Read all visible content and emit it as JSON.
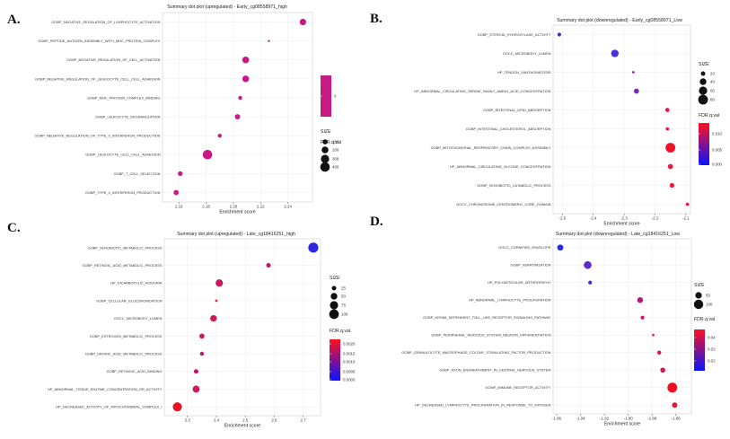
{
  "chart_data": [
    {
      "panel": "A.",
      "type": "scatter",
      "title": "Summary dot plot (upregulated) - Early_cg08558971_high",
      "xlabel": "Enrichment score",
      "xlim": [
        2.148,
        2.258
      ],
      "xticks": [
        2.16,
        2.18,
        2.2,
        2.22,
        2.24
      ],
      "xticklabels": [
        "2.16",
        "2.18",
        "2.20",
        "2.22",
        "2.24"
      ],
      "categories": [
        "GOBP_NEGATIVE_REGULATION_OF_LYMPHOCYTE_ACTIVATION",
        "GOBP_PEPTIDE_ANTIGEN_ASSEMBLY_WITH_MHC_PROTEIN_COMPLEX",
        "GOBP_NEGATIVE_REGULATION_OF_CELL_ACTIVATION",
        "GOBP_NEGATIVE_REGULATION_OF_LEUKOCYTE_CELL_CELL_ADHESION",
        "GOBP_MHC_PROTEIN_COMPLEX_BINDING",
        "GOBP_LEUKOCYTE_DEGRANULATION",
        "GOBP_NEGATIVE_REGULATION_OF_TYPE_II_INTERFERON_PRODUCTION",
        "GOBP_LEUKOCYTE_CELL_CELL_ADHESION",
        "GOBP_T_CELL_SELECTION",
        "GOBP_TYPE_II_INTERFERON_PRODUCTION"
      ],
      "points": [
        {
          "x": 2.251,
          "size": 180,
          "color": "#c81a85"
        },
        {
          "x": 2.226,
          "size": 15,
          "color": "#c81a85"
        },
        {
          "x": 2.209,
          "size": 200,
          "color": "#c81a85"
        },
        {
          "x": 2.209,
          "size": 190,
          "color": "#c81a85"
        },
        {
          "x": 2.205,
          "size": 60,
          "color": "#c81a85"
        },
        {
          "x": 2.203,
          "size": 120,
          "color": "#c81a85"
        },
        {
          "x": 2.19,
          "size": 60,
          "color": "#c81a85"
        },
        {
          "x": 2.181,
          "size": 400,
          "color": "#c81a85"
        },
        {
          "x": 2.161,
          "size": 90,
          "color": "#c81a85"
        },
        {
          "x": 2.158,
          "size": 110,
          "color": "#c81a85"
        }
      ],
      "size_range": [
        10,
        450
      ],
      "color_legend": {
        "title": "FDR.q.val",
        "type": "solid",
        "colors": [
          "#c81a85"
        ],
        "labels": [
          "0"
        ]
      },
      "size_legend": {
        "title": "SIZE",
        "values": [
          100,
          200,
          300,
          400
        ],
        "labels": [
          "100",
          "200",
          "300",
          "400"
        ]
      }
    },
    {
      "panel": "B.",
      "type": "scatter",
      "title": "Summary dot plot (downregulated) - Early_cg08558971_Low",
      "xlabel": "Enrichment score",
      "xlim": [
        -2.53,
        -2.085
      ],
      "xticks": [
        -2.5,
        -2.4,
        -2.3,
        -2.2,
        -2.1
      ],
      "xticklabels": [
        "-2.5",
        "-2.4",
        "-2.3",
        "-2.2",
        "-2.1"
      ],
      "categories": [
        "GOBP_STEROID_HYDROXYLASE_ACTIVITY",
        "GOCC_MICROBODY_LUMEN",
        "HP_TENDON_XANTHOMATOSIS",
        "HP_ABNORMAL_CIRCULATING_SERINE_FAMILY_AMINO_ACID_CONCENTRATION",
        "GOBP_INTESTINAL_LIPID_ABSORPTION",
        "GOBP_INTESTINAL_CHOLESTEROL_ABSORPTION",
        "GOBP_MITOCHONDRIAL_RESPIRATORY_CHAIN_COMPLEX_ASSEMBLY",
        "HP_ABNORMAL_CIRCULATING_GLYCINE_CONCENTRATION",
        "GOBP_XENOBIOTIC_CATABOLIC_PROCESS",
        "GOCC_CHROMOSOME_CENTROMERIC_CORE_DOMAIN"
      ],
      "points": [
        {
          "x": -2.51,
          "size": 15,
          "color": "#3b2ee0"
        },
        {
          "x": -2.33,
          "size": 50,
          "color": "#4a30d8"
        },
        {
          "x": -2.27,
          "size": 8,
          "color": "#8a2a9e"
        },
        {
          "x": -2.26,
          "size": 25,
          "color": "#7a2aae"
        },
        {
          "x": -2.16,
          "size": 18,
          "color": "#e8183a"
        },
        {
          "x": -2.16,
          "size": 12,
          "color": "#e6183c"
        },
        {
          "x": -2.15,
          "size": 80,
          "color": "#f0102a"
        },
        {
          "x": -2.15,
          "size": 25,
          "color": "#e8183a"
        },
        {
          "x": -2.145,
          "size": 22,
          "color": "#e8183a"
        },
        {
          "x": -2.095,
          "size": 12,
          "color": "#e8183a"
        }
      ],
      "size_range": [
        5,
        85
      ],
      "color_legend": {
        "title": "FDR.q.val",
        "type": "gradient",
        "colors": [
          "#ff1020",
          "#0a14ff"
        ],
        "labels": [
          "0.010",
          "0.005",
          "0.000"
        ]
      },
      "size_legend": {
        "title": "SIZE",
        "values": [
          20,
          40,
          60,
          80
        ],
        "labels": [
          "20",
          "40",
          "60",
          "80"
        ]
      }
    },
    {
      "panel": "C.",
      "type": "scatter",
      "title": "Summary dot plot (upregulated) - Late_cg18416251_high",
      "xlabel": "Enrichment score",
      "xlim": [
        2.22,
        2.76
      ],
      "xticks": [
        2.3,
        2.4,
        2.5,
        2.6,
        2.7
      ],
      "xticklabels": [
        "2.3",
        "2.4",
        "2.5",
        "2.6",
        "2.7"
      ],
      "categories": [
        "GOBP_XENOBIOTIC_METABOLIC_PROCESS",
        "GOBP_RETINOIC_ACID_METABOLIC_PROCESS",
        "HP_DICARBOXYLIC_ACIDURIA",
        "GOBP_CELLULAR_GLUCURONIDATION",
        "GOCC_MICROBODY_LUMEN",
        "GOBP_ESTROGEN_METABOLIC_PROCESS",
        "GOBP_URONIC_ACID_METABOLIC_PROCESS",
        "GOBP_RETINOIC_ACID_BINDING",
        "HP_ABNORMAL_TISSUE_ENZYME_CONCENTRATION_OR_ACTIVITY",
        "HP_DECREASED_ACTIVITY_OF_MITOCHONDRIAL_COMPLEX_I"
      ],
      "points": [
        {
          "x": 2.735,
          "size": 110,
          "color": "#3028e0"
        },
        {
          "x": 2.58,
          "size": 25,
          "color": "#c0186a"
        },
        {
          "x": 2.41,
          "size": 60,
          "color": "#c8185e"
        },
        {
          "x": 2.4,
          "size": 8,
          "color": "#e8182e"
        },
        {
          "x": 2.39,
          "size": 50,
          "color": "#d0185a"
        },
        {
          "x": 2.35,
          "size": 30,
          "color": "#c8185e"
        },
        {
          "x": 2.35,
          "size": 20,
          "color": "#c0186a"
        },
        {
          "x": 2.33,
          "size": 25,
          "color": "#c0186a"
        },
        {
          "x": 2.33,
          "size": 55,
          "color": "#c8185e"
        },
        {
          "x": 2.265,
          "size": 90,
          "color": "#e61228"
        }
      ],
      "size_range": [
        5,
        110
      ],
      "color_legend": {
        "title": "FDR.q.val",
        "type": "gradient",
        "colors": [
          "#ff1020",
          "#0a14ff"
        ],
        "labels": [
          "0.0020",
          "0.0015",
          "0.0010",
          "0.0005",
          "0.0000"
        ]
      },
      "size_legend": {
        "title": "SIZE",
        "values": [
          25,
          50,
          75,
          100
        ],
        "labels": [
          "25",
          "50",
          "75",
          "100"
        ]
      }
    },
    {
      "panel": "D.",
      "type": "scatter",
      "title": "Summary dot plot (downregulated) - Late_cg18416251_Low",
      "xlabel": "Enrichment score",
      "xlim": [
        -1.963,
        -1.847
      ],
      "xticks": [
        -1.96,
        -1.94,
        -1.92,
        -1.9,
        -1.88,
        -1.86
      ],
      "xticklabels": [
        "-1.96",
        "-1.94",
        "-1.92",
        "-1.90",
        "-1.88",
        "-1.86"
      ],
      "categories": [
        "GOCC_CORNIFIED_ENVELOPE",
        "GOBP_KERATINIZATION",
        "HP_POLYARTICULAR_ARTHROPATHY",
        "HP_ABNORMAL_LYMPHOCYTE_PROLIFERATION",
        "GOBP_MYD88_DEPENDENT_TOLL_LIKE_RECEPTOR_SIGNALING_PATHWAY",
        "GOBP_PERIPHERAL_NERVOUS_SYSTEM_NEURON_DIFFERENTIATION",
        "GOBP_GRANULOCYTE_MACROPHAGE_COLONY_STIMULATING_FACTOR_PRODUCTION",
        "GOBP_AXON_ENSHEATHMENT_IN_CENTRAL_NERVOUS_SYSTEM",
        "GOMF_IMMUNE_RECEPTOR_ACTIVITY",
        "HP_DECREASED_LYMPHOCYTE_PROLIFERATION_IN_RESPONSE_TO_MITOGEN"
      ],
      "points": [
        {
          "x": -1.957,
          "size": 45,
          "color": "#2a2ae8"
        },
        {
          "x": -1.934,
          "size": 70,
          "color": "#5a2cc8"
        },
        {
          "x": -1.932,
          "size": 18,
          "color": "#4a2ad8"
        },
        {
          "x": -1.89,
          "size": 40,
          "color": "#b0187a"
        },
        {
          "x": -1.888,
          "size": 18,
          "color": "#c4186c"
        },
        {
          "x": -1.879,
          "size": 8,
          "color": "#e01840"
        },
        {
          "x": -1.874,
          "size": 20,
          "color": "#d8184c"
        },
        {
          "x": -1.871,
          "size": 30,
          "color": "#cc1858"
        },
        {
          "x": -1.863,
          "size": 110,
          "color": "#f01020"
        },
        {
          "x": -1.861,
          "size": 35,
          "color": "#e81830"
        }
      ],
      "size_range": [
        5,
        115
      ],
      "color_legend": {
        "title": "FDR.q.val",
        "type": "gradient",
        "colors": [
          "#ff1020",
          "#0a14ff"
        ],
        "labels": [
          "0.04",
          "0.03",
          "0.02"
        ]
      },
      "size_legend": {
        "title": "SIZE",
        "values": [
          50,
          100
        ],
        "labels": [
          "50",
          "100"
        ]
      }
    }
  ]
}
